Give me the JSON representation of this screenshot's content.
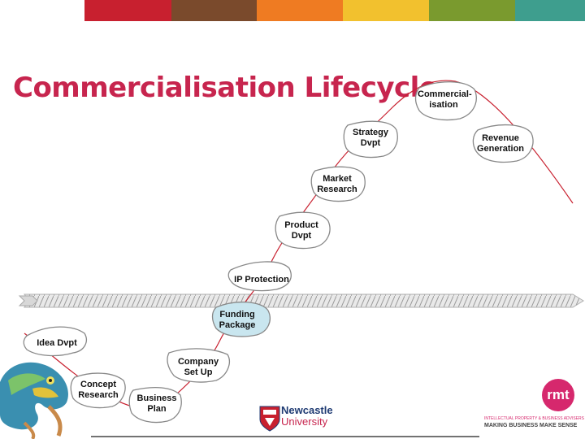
{
  "header": {
    "colors": [
      "#ffffff",
      "#c8202f",
      "#7a4a2c",
      "#ef7b22",
      "#f2c12e",
      "#7a9a2e",
      "#3e9e8e"
    ]
  },
  "title": "Commercialisation Lifecycle",
  "stages": [
    {
      "label": "Idea Dvpt"
    },
    {
      "label": "Concept\nResearch"
    },
    {
      "label": "Business\nPlan"
    },
    {
      "label": "Company\nSet Up"
    },
    {
      "label": "Funding\nPackage"
    },
    {
      "label": "IP Protection"
    },
    {
      "label": "Product\nDvpt"
    },
    {
      "label": "Market\nResearch"
    },
    {
      "label": "Strategy\nDvpt"
    },
    {
      "label": "Commercial-\nisation"
    },
    {
      "label": "Revenue\nGeneration"
    }
  ],
  "logos": {
    "newcastle_line1": "Newcastle",
    "newcastle_line2": "University",
    "rmt": "rmt",
    "rmt_tagline_small": "INTELLECTUAL PROPERTY & BUSINESS ADVISERS",
    "rmt_tagline": "MAKING BUSINESS MAKE SENSE"
  },
  "icons": [
    "chameleon-icon",
    "newcastle-crest-icon"
  ],
  "colors": {
    "title": "#c7254e",
    "curve": "#c8202f",
    "highlight": "#c9e6ef"
  }
}
